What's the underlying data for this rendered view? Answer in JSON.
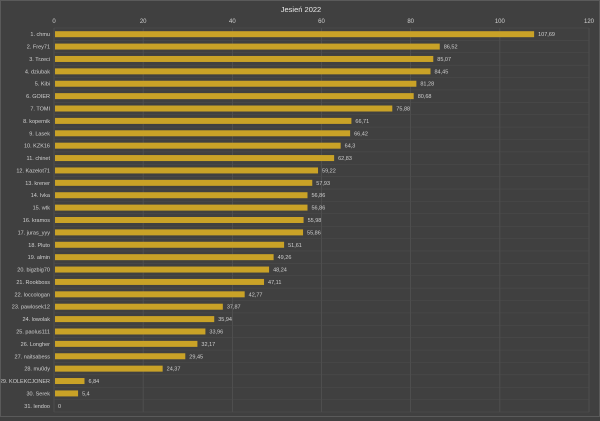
{
  "chart_data": {
    "type": "bar",
    "orientation": "horizontal",
    "title": "Jesień 2022",
    "xlim": [
      0,
      120
    ],
    "xticks": [
      0,
      20,
      40,
      60,
      80,
      100,
      120
    ],
    "grid": true,
    "x_axis_position": "top",
    "bar_color": "#c9a227",
    "background_color": "#404040",
    "categories": [
      "1. chmu",
      "2. Frey71",
      "3. Trzeci",
      "4. dziubak",
      "5. Kibi",
      "6. GOIER",
      "7. TOMI",
      "8. kopernik",
      "9. Lasek",
      "10. KZK16",
      "11. chinet",
      "12. Kazelot71",
      "13. krener",
      "14. Ivka",
      "15. wtk",
      "16. kramos",
      "17. juras_yyy",
      "18. Pluto",
      "19. almin",
      "20. bigzbig70",
      "21. Rookboss",
      "22. loccologan",
      "23. pawlosek12",
      "24. lowolak",
      "25. paolus111",
      "26. Longher",
      "27. naitsabess",
      "28. mu0dy",
      "29. KOLEKCJONER",
      "30. Serek",
      "31. lendoo"
    ],
    "values": [
      107.69,
      86.52,
      85.07,
      84.45,
      81.28,
      80.68,
      75.88,
      66.71,
      66.42,
      64.3,
      62.83,
      59.22,
      57.93,
      56.86,
      56.86,
      55.98,
      55.86,
      51.61,
      49.26,
      48.24,
      47.11,
      42.77,
      37.87,
      35.94,
      33.96,
      32.17,
      29.45,
      24.37,
      6.84,
      5.4,
      0
    ],
    "data_labels": [
      "107,69",
      "86,52",
      "85,07",
      "84,45",
      "81,28",
      "80,68",
      "75,88",
      "66,71",
      "66,42",
      "64,3",
      "62,83",
      "59,22",
      "57,93",
      "56,86",
      "56,86",
      "55,98",
      "55,86",
      "51,61",
      "49,26",
      "48,24",
      "47,11",
      "42,77",
      "37,87",
      "35,94",
      "33,96",
      "32,17",
      "29,45",
      "24,37",
      "6,84",
      "5,4",
      "0"
    ]
  }
}
